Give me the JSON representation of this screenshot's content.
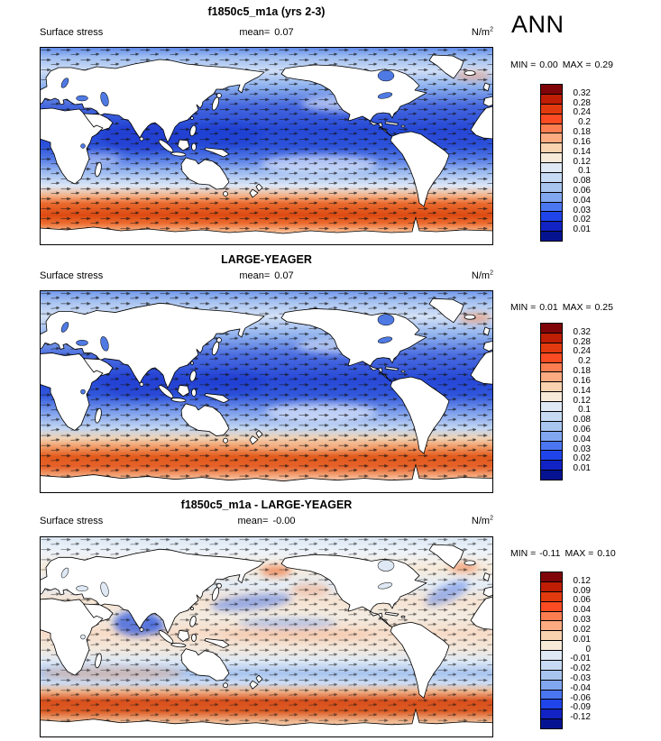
{
  "header": {
    "season": "ANN"
  },
  "panels": [
    {
      "title": "f1850c5_m1a (yrs 2-3)",
      "field_label": "Surface stress",
      "mean_label": "mean=",
      "mean_value": "0.07",
      "units": "N/m",
      "units_exponent": "2",
      "min_label": "MIN =",
      "min_value": "0.00",
      "max_label": "MAX =",
      "max_value": "0.29",
      "colorbar_labels": [
        "0.32",
        "0.28",
        "0.24",
        "0.2",
        "0.18",
        "0.16",
        "0.14",
        "0.12",
        "0.1",
        "0.08",
        "0.06",
        "0.04",
        "0.03",
        "0.02",
        "0.01"
      ],
      "colorbar_colors": [
        "#7f0508",
        "#bf1d04",
        "#e23a0e",
        "#fb4b22",
        "#fc7e50",
        "#fdab80",
        "#f9d2b0",
        "#f8ead9",
        "#dfe9f5",
        "#c6daf3",
        "#a8c5f0",
        "#81a7f1",
        "#4a76f2",
        "#1f45ea",
        "#1123c4",
        "#061391"
      ]
    },
    {
      "title": "LARGE-YEAGER",
      "field_label": "Surface stress",
      "mean_label": "mean=",
      "mean_value": "0.07",
      "units": "N/m",
      "units_exponent": "2",
      "min_label": "MIN =",
      "min_value": "0.01",
      "max_label": "MAX =",
      "max_value": "0.25",
      "colorbar_labels": [
        "0.32",
        "0.28",
        "0.24",
        "0.2",
        "0.18",
        "0.16",
        "0.14",
        "0.12",
        "0.1",
        "0.08",
        "0.06",
        "0.04",
        "0.03",
        "0.02",
        "0.01"
      ],
      "colorbar_colors": [
        "#7f0508",
        "#bf1d04",
        "#e23a0e",
        "#fb4b22",
        "#fc7e50",
        "#fdab80",
        "#f9d2b0",
        "#f8ead9",
        "#dfe9f5",
        "#c6daf3",
        "#a8c5f0",
        "#81a7f1",
        "#4a76f2",
        "#1f45ea",
        "#1123c4",
        "#061391"
      ]
    },
    {
      "title": "f1850c5_m1a - LARGE-YEAGER",
      "field_label": "Surface stress",
      "mean_label": "mean=",
      "mean_value": "-0.00",
      "units": "N/m",
      "units_exponent": "2",
      "min_label": "MIN =",
      "min_value": "-0.11",
      "max_label": "MAX =",
      "max_value": "0.10",
      "colorbar_labels": [
        "0.12",
        "0.09",
        "0.06",
        "0.04",
        "0.03",
        "0.02",
        "0.01",
        "0",
        "-0.01",
        "-0.02",
        "-0.03",
        "-0.04",
        "-0.06",
        "-0.09",
        "-0.12"
      ],
      "colorbar_colors": [
        "#7f0508",
        "#bf1d04",
        "#e23a0e",
        "#fb4b22",
        "#fc7e50",
        "#fdab80",
        "#f9d2b0",
        "#f8ead9",
        "#dfe9f5",
        "#c6daf3",
        "#a8c5f0",
        "#81a7f1",
        "#4a76f2",
        "#1f45ea",
        "#1123c4",
        "#061391"
      ]
    }
  ],
  "chart_data": [
    {
      "type": "heatmap",
      "panel": "top",
      "title": "f1850c5_m1a (yrs 2-3)",
      "variable": "Surface stress",
      "units": "N/m^2",
      "season": "ANN",
      "map": "global lat-lon map, 0-360E, wind-stress vectors overlaid on magnitude shading",
      "stats": {
        "mean": 0.07,
        "min": 0.0,
        "max": 0.29
      },
      "contour_levels": [
        0.01,
        0.02,
        0.03,
        0.04,
        0.06,
        0.08,
        0.1,
        0.12,
        0.14,
        0.16,
        0.18,
        0.2,
        0.24,
        0.28,
        0.32
      ],
      "palette_top_to_bottom": [
        "#7f0508",
        "#bf1d04",
        "#e23a0e",
        "#fb4b22",
        "#fc7e50",
        "#fdab80",
        "#f9d2b0",
        "#f8ead9",
        "#dfe9f5",
        "#c6daf3",
        "#a8c5f0",
        "#81a7f1",
        "#4a76f2",
        "#1f45ea",
        "#1123c4",
        "#061391"
      ],
      "features": [
        "Strong westerly stress band 0.2-0.32 N/m^2 over Southern Ocean 45-60S (red/orange)",
        "Moderate stress 0.08-0.16 in NH storm tracks and trade-wind belts (mid blue)",
        "Weak stress below 0.06 in tropical warm pool, Indian Ocean and coastal seas (dark blue)"
      ]
    },
    {
      "type": "heatmap",
      "panel": "middle",
      "title": "LARGE-YEAGER",
      "variable": "Surface stress",
      "units": "N/m^2",
      "season": "ANN",
      "map": "global lat-lon map, 0-360E, wind-stress vectors overlaid on magnitude shading",
      "stats": {
        "mean": 0.07,
        "min": 0.01,
        "max": 0.25
      },
      "contour_levels": [
        0.01,
        0.02,
        0.03,
        0.04,
        0.06,
        0.08,
        0.1,
        0.12,
        0.14,
        0.16,
        0.18,
        0.2,
        0.24,
        0.28,
        0.32
      ],
      "palette_top_to_bottom": [
        "#7f0508",
        "#bf1d04",
        "#e23a0e",
        "#fb4b22",
        "#fc7e50",
        "#fdab80",
        "#f9d2b0",
        "#f8ead9",
        "#dfe9f5",
        "#c6daf3",
        "#a8c5f0",
        "#81a7f1",
        "#4a76f2",
        "#1f45ea",
        "#1123c4",
        "#061391"
      ],
      "features": [
        "Observed climatology: Southern Ocean westerly band weaker (~0.16-0.24) than model",
        "Blue low-stress tropics and subtropical gyres, moderate NH storm tracks"
      ]
    },
    {
      "type": "heatmap",
      "panel": "bottom",
      "title": "f1850c5_m1a - LARGE-YEAGER",
      "variable": "Surface stress difference",
      "units": "N/m^2",
      "season": "ANN",
      "map": "global lat-lon map, 0-360E, difference vectors overlaid on difference shading",
      "stats": {
        "mean": -0.0,
        "min": -0.11,
        "max": 0.1
      },
      "contour_levels": [
        -0.12,
        -0.09,
        -0.06,
        -0.04,
        -0.03,
        -0.02,
        -0.01,
        0,
        0.01,
        0.02,
        0.03,
        0.04,
        0.06,
        0.09,
        0.12
      ],
      "palette_top_to_bottom": [
        "#7f0508",
        "#bf1d04",
        "#e23a0e",
        "#fb4b22",
        "#fc7e50",
        "#fdab80",
        "#f9d2b0",
        "#f8ead9",
        "#dfe9f5",
        "#c6daf3",
        "#a8c5f0",
        "#81a7f1",
        "#4a76f2",
        "#1f45ea",
        "#1123c4",
        "#061391"
      ],
      "features": [
        "Positive bias band +0.06 to +0.12 over Southern Ocean 50-60S (model westerlies too strong)",
        "Negative band -0.02 to -0.04 near 35-45S",
        "Negative patches in Arabian Sea / Bay of Bengal and North Pacific; small positive patches in Bering Sea and northern North Atlantic"
      ]
    }
  ]
}
